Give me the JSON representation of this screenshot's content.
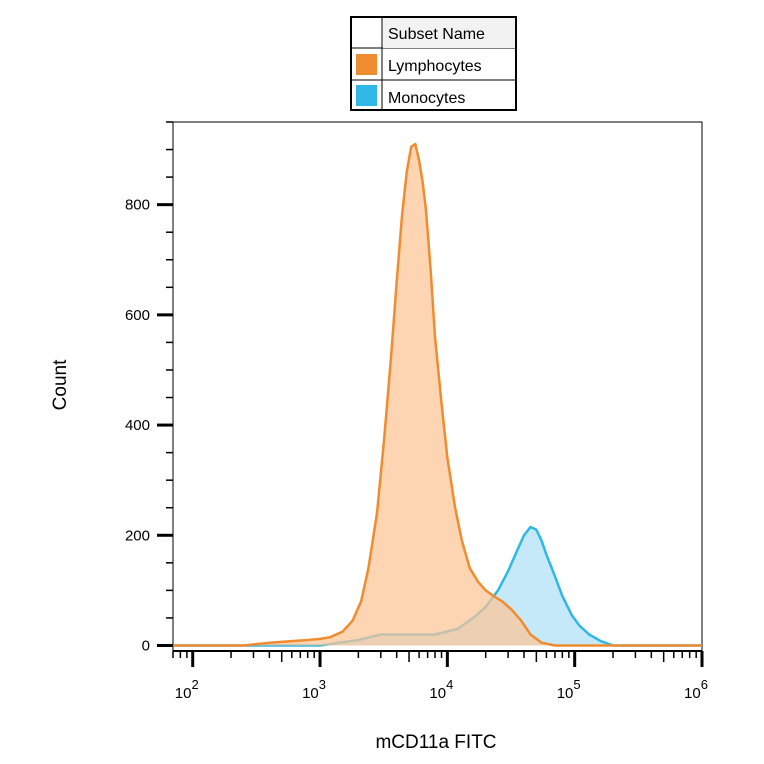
{
  "chart_data": {
    "type": "area",
    "xscale": "log",
    "xlabel": "mCD11a FITC",
    "ylabel": "Count",
    "xlim": [
      70,
      1000000
    ],
    "ylim": [
      -10,
      950
    ],
    "x_ticks": [
      {
        "value": 100,
        "base": "10",
        "exp": "2"
      },
      {
        "value": 1000,
        "base": "10",
        "exp": "3"
      },
      {
        "value": 10000,
        "base": "10",
        "exp": "4"
      },
      {
        "value": 100000,
        "base": "10",
        "exp": "5"
      },
      {
        "value": 1000000,
        "base": "10",
        "exp": "6"
      }
    ],
    "y_ticks": [
      0,
      200,
      400,
      600,
      800
    ],
    "grid": false,
    "legend": {
      "title": "Subset Name",
      "placement": "top-center"
    },
    "series": [
      {
        "name": "Lymphocytes",
        "line_color": "#f08c30",
        "fill_color": "#fcc596",
        "x": [
          70,
          250,
          400,
          600,
          800,
          1000,
          1200,
          1500,
          1800,
          2100,
          2400,
          2800,
          3200,
          3600,
          4000,
          4400,
          4800,
          5200,
          5600,
          6000,
          6400,
          6800,
          7400,
          8000,
          9000,
          10000,
          11500,
          13000,
          15000,
          17500,
          20000,
          23000,
          27000,
          32000,
          38000,
          45000,
          55000,
          70000,
          1000000
        ],
        "y": [
          0,
          0,
          5,
          8,
          10,
          12,
          15,
          25,
          45,
          80,
          140,
          240,
          380,
          520,
          660,
          780,
          860,
          905,
          910,
          880,
          840,
          790,
          680,
          560,
          440,
          340,
          250,
          190,
          140,
          115,
          100,
          90,
          80,
          65,
          45,
          20,
          5,
          0,
          0
        ]
      },
      {
        "name": "Monocytes",
        "line_color": "#2fb8e6",
        "fill_color": "#aee1f5",
        "x": [
          70,
          1000,
          2000,
          3000,
          5000,
          8000,
          12000,
          16000,
          20000,
          25000,
          30000,
          35000,
          40000,
          45000,
          50000,
          55000,
          60000,
          70000,
          80000,
          95000,
          110000,
          130000,
          160000,
          200000,
          1000000
        ],
        "y": [
          0,
          0,
          10,
          20,
          20,
          20,
          30,
          50,
          70,
          100,
          135,
          170,
          200,
          215,
          210,
          190,
          165,
          125,
          90,
          55,
          35,
          20,
          8,
          0,
          0
        ]
      }
    ]
  }
}
